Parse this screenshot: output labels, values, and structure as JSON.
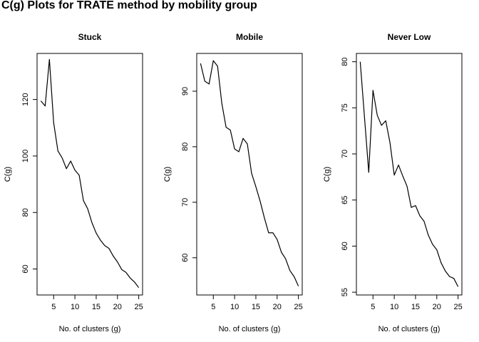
{
  "title": "C(g) Plots for TRATE method by mobility group",
  "chart_data": [
    {
      "type": "line",
      "title": "Stuck",
      "xlabel": "No. of clusters (g)",
      "ylabel": "C(g)",
      "xlim": [
        1.1,
        25.9
      ],
      "ylim": [
        50.8,
        136.3
      ],
      "xticks": [
        5,
        10,
        15,
        20,
        25
      ],
      "yticks": [
        60,
        80,
        100,
        120
      ],
      "grid": false,
      "x": [
        2,
        3,
        4,
        5,
        6,
        7,
        8,
        9,
        10,
        11,
        12,
        13,
        14,
        15,
        16,
        17,
        18,
        19,
        20,
        21,
        22,
        23,
        24,
        25
      ],
      "y": [
        119.5,
        117.7,
        134.2,
        111.8,
        101.8,
        99.3,
        95.5,
        98.2,
        95.0,
        93.2,
        84.2,
        81.3,
        76.4,
        72.7,
        70.2,
        68.3,
        67.3,
        64.6,
        62.5,
        59.8,
        58.8,
        56.8,
        55.4,
        53.4
      ]
    },
    {
      "type": "line",
      "title": "Mobile",
      "xlabel": "No. of clusters (g)",
      "ylabel": "C(g)",
      "xlim": [
        1.1,
        25.9
      ],
      "ylim": [
        53.3,
        96.8
      ],
      "xticks": [
        5,
        10,
        15,
        20,
        25
      ],
      "yticks": [
        60,
        70,
        80,
        90
      ],
      "grid": false,
      "x": [
        2,
        3,
        4,
        5,
        6,
        7,
        8,
        9,
        10,
        11,
        12,
        13,
        14,
        15,
        16,
        17,
        18,
        19,
        20,
        21,
        22,
        23,
        24,
        25
      ],
      "y": [
        95.0,
        91.8,
        91.3,
        95.5,
        94.5,
        87.8,
        83.5,
        83.0,
        79.6,
        79.1,
        81.5,
        80.5,
        75.2,
        72.8,
        70.2,
        67.2,
        64.5,
        64.5,
        63.3,
        61.0,
        59.8,
        57.7,
        56.6,
        54.9
      ]
    },
    {
      "type": "line",
      "title": "Never Low",
      "xlabel": "No. of clusters (g)",
      "ylabel": "C(g)",
      "xlim": [
        1.1,
        25.9
      ],
      "ylim": [
        54.7,
        80.9
      ],
      "xticks": [
        5,
        10,
        15,
        20,
        25
      ],
      "yticks": [
        55,
        60,
        65,
        70,
        75,
        80
      ],
      "grid": false,
      "x": [
        2,
        3,
        4,
        5,
        6,
        7,
        8,
        9,
        10,
        11,
        12,
        13,
        14,
        15,
        16,
        17,
        18,
        19,
        20,
        21,
        22,
        23,
        24,
        25
      ],
      "y": [
        80.0,
        74.0,
        68.0,
        76.9,
        74.2,
        73.1,
        73.6,
        71.2,
        67.7,
        68.8,
        67.6,
        66.5,
        64.2,
        64.4,
        63.3,
        62.7,
        61.2,
        60.2,
        59.6,
        58.2,
        57.3,
        56.7,
        56.5,
        55.6
      ]
    }
  ]
}
